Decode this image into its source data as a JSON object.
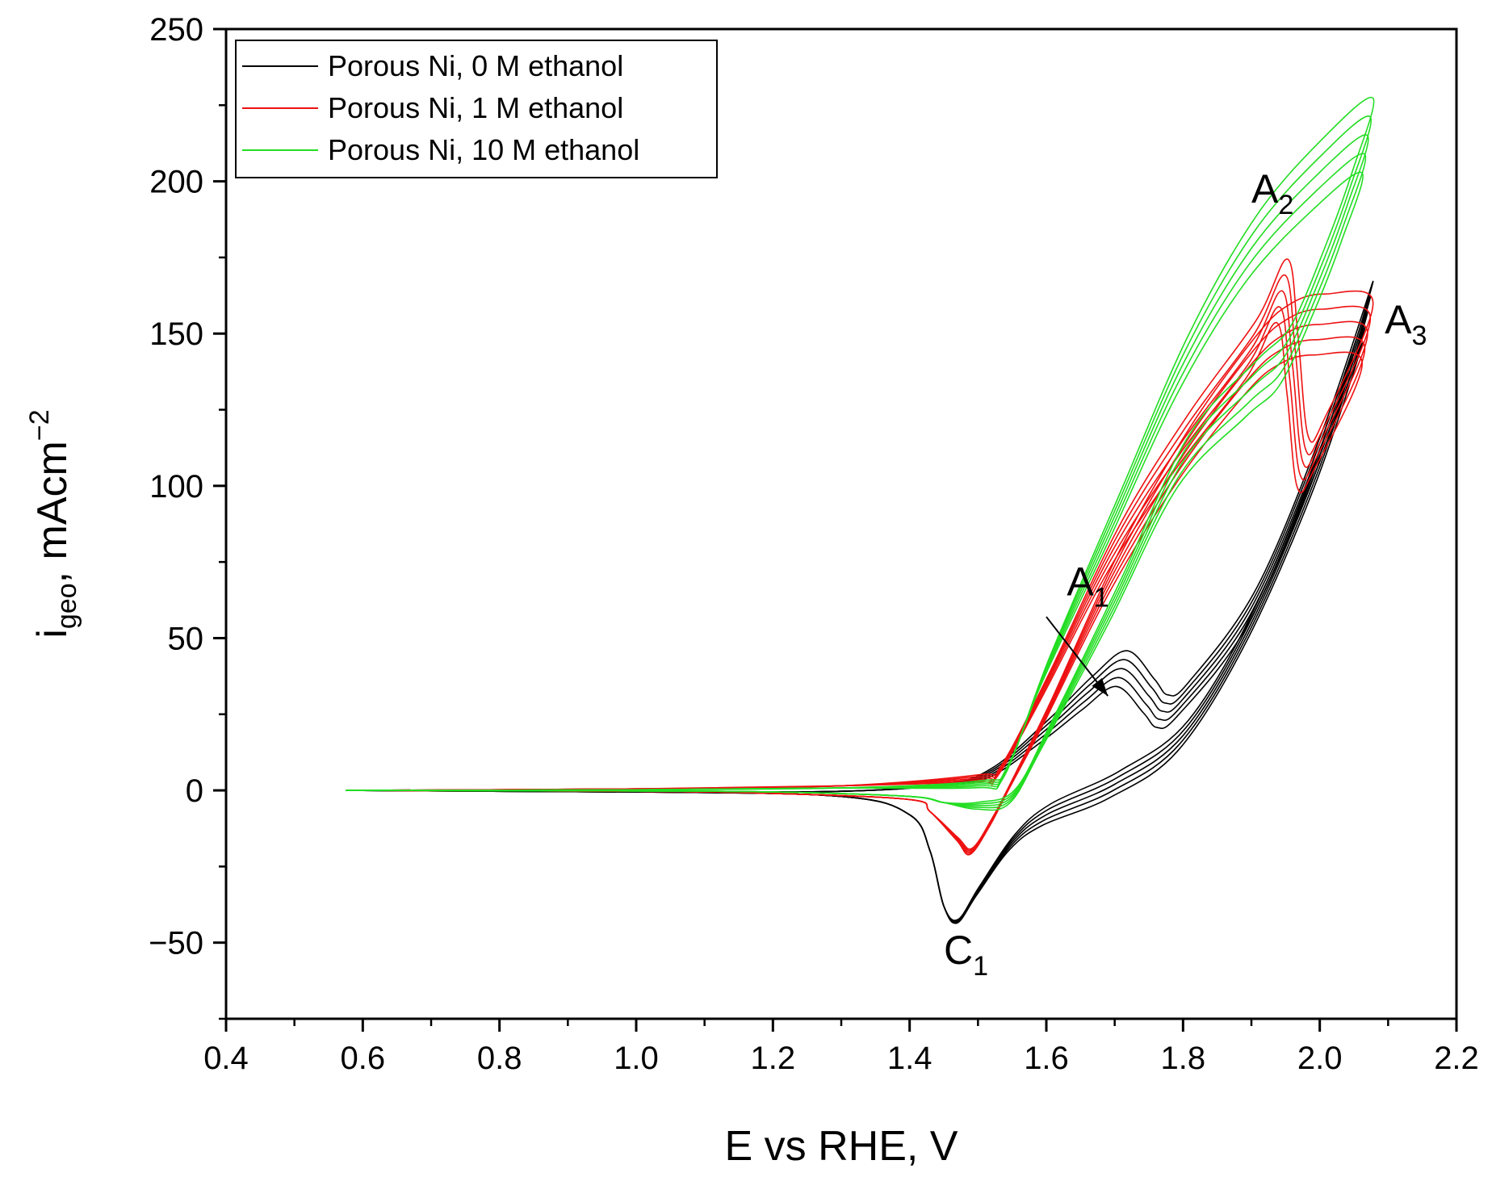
{
  "chart_data": {
    "type": "line",
    "title": "",
    "xlabel": "E vs RHE, V",
    "ylabel": {
      "main": "i",
      "sub": "geo",
      "unit": ", mAcm",
      "sup": "−2"
    },
    "xlim": [
      0.4,
      2.2
    ],
    "ylim": [
      -75,
      250
    ],
    "xticks": [
      0.4,
      0.6,
      0.8,
      1.0,
      1.2,
      1.4,
      1.6,
      1.8,
      2.0,
      2.2
    ],
    "xtick_labels": [
      "0.4",
      "0.6",
      "0.8",
      "1.0",
      "1.2",
      "1.4",
      "1.6",
      "1.8",
      "2.0",
      "2.2"
    ],
    "yticks": [
      -50,
      0,
      50,
      100,
      150,
      200,
      250
    ],
    "ytick_labels": [
      "−50",
      "0",
      "50",
      "100",
      "150",
      "200",
      "250"
    ],
    "grid": false,
    "legend_position": "top-left",
    "series": [
      {
        "name": "Porous Ni, 0 M ethanol",
        "color": "#000000",
        "cycles": 5,
        "forward": [
          [
            0.575,
            0
          ],
          [
            1.0,
            -0.5
          ],
          [
            1.3,
            -0.3
          ],
          [
            1.45,
            2
          ],
          [
            1.52,
            6
          ],
          [
            1.6,
            20
          ],
          [
            1.66,
            32
          ],
          [
            1.71,
            40
          ],
          [
            1.75,
            31
          ],
          [
            1.77,
            26
          ],
          [
            1.8,
            30
          ],
          [
            1.9,
            60
          ],
          [
            2.0,
            112
          ],
          [
            2.07,
            157
          ]
        ],
        "backward": [
          [
            2.07,
            157
          ],
          [
            2.0,
            108
          ],
          [
            1.9,
            55
          ],
          [
            1.8,
            18
          ],
          [
            1.7,
            2
          ],
          [
            1.6,
            -8
          ],
          [
            1.55,
            -17
          ],
          [
            1.5,
            -33
          ],
          [
            1.47,
            -43
          ],
          [
            1.45,
            -38
          ],
          [
            1.43,
            -20
          ],
          [
            1.4,
            -8
          ],
          [
            1.3,
            -2
          ],
          [
            1.0,
            -0.5
          ],
          [
            0.575,
            0
          ]
        ]
      },
      {
        "name": "Porous Ni, 1 M ethanol",
        "color": "#ee1111",
        "cycles": 5,
        "forward": [
          [
            0.575,
            0
          ],
          [
            1.0,
            0.5
          ],
          [
            1.3,
            1.5
          ],
          [
            1.5,
            4
          ],
          [
            1.53,
            6
          ],
          [
            1.6,
            35
          ],
          [
            1.7,
            80
          ],
          [
            1.8,
            115
          ],
          [
            1.9,
            145
          ],
          [
            1.945,
            164
          ],
          [
            1.96,
            140
          ],
          [
            1.975,
            108
          ],
          [
            2.0,
            114
          ],
          [
            2.07,
            150
          ]
        ],
        "backward": [
          [
            2.07,
            150
          ],
          [
            2.0,
            153
          ],
          [
            1.95,
            150
          ],
          [
            1.9,
            140
          ],
          [
            1.8,
            110
          ],
          [
            1.7,
            72
          ],
          [
            1.6,
            25
          ],
          [
            1.55,
            3
          ],
          [
            1.52,
            -10
          ],
          [
            1.49,
            -20
          ],
          [
            1.47,
            -16
          ],
          [
            1.43,
            -7
          ],
          [
            1.4,
            -3
          ],
          [
            1.2,
            -1
          ],
          [
            1.0,
            -0.3
          ],
          [
            0.575,
            0
          ]
        ]
      },
      {
        "name": "Porous Ni, 10 M ethanol",
        "color": "#22dd22",
        "cycles": 5,
        "forward": [
          [
            0.575,
            0
          ],
          [
            1.0,
            0.2
          ],
          [
            1.3,
            0.8
          ],
          [
            1.5,
            2
          ],
          [
            1.54,
            6
          ],
          [
            1.6,
            40
          ],
          [
            1.7,
            90
          ],
          [
            1.8,
            140
          ],
          [
            1.9,
            178
          ],
          [
            2.0,
            203
          ],
          [
            2.07,
            215
          ]
        ],
        "backward": [
          [
            2.07,
            215
          ],
          [
            2.04,
            192
          ],
          [
            2.0,
            168
          ],
          [
            1.95,
            143
          ],
          [
            1.9,
            132
          ],
          [
            1.8,
            108
          ],
          [
            1.7,
            62
          ],
          [
            1.6,
            18
          ],
          [
            1.55,
            -2
          ],
          [
            1.5,
            -5
          ],
          [
            1.45,
            -4
          ],
          [
            1.4,
            -2
          ],
          [
            1.2,
            -0.5
          ],
          [
            1.0,
            -0.2
          ],
          [
            0.575,
            0
          ]
        ]
      }
    ],
    "annotations": [
      {
        "label": "A",
        "sub": "1",
        "x": 1.63,
        "y": 64,
        "arrow_from": [
          1.6,
          57
        ],
        "arrow_to": [
          1.69,
          31
        ]
      },
      {
        "label": "A",
        "sub": "2",
        "x": 1.9,
        "y": 193
      },
      {
        "label": "A",
        "sub": "3",
        "x": 2.095,
        "y": 150
      },
      {
        "label": "C",
        "sub": "1",
        "x": 1.45,
        "y": -57
      }
    ]
  }
}
